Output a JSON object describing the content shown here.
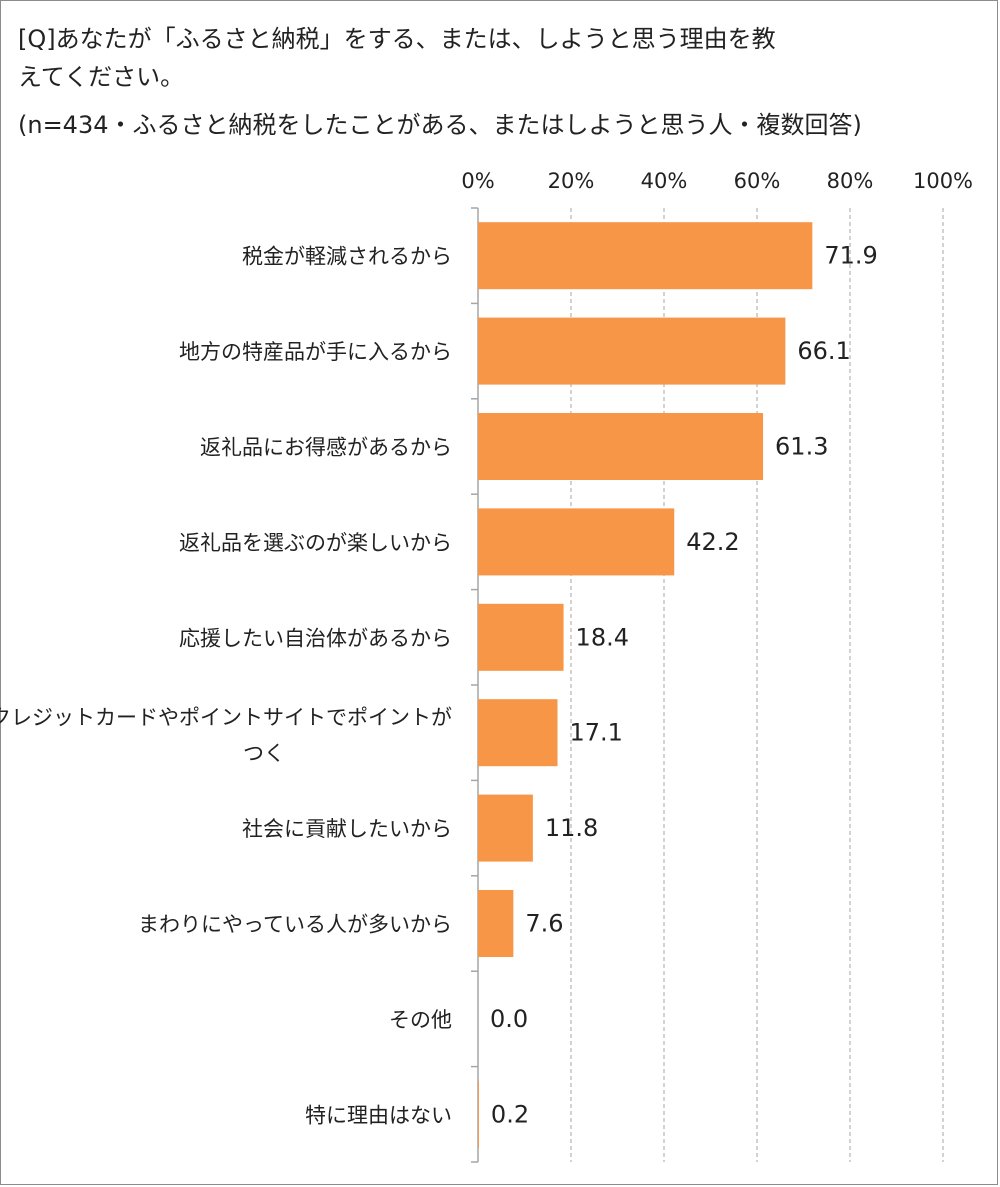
{
  "question": "[Q]あなたが「ふるさと納税」をする、または、しようと思う理由を教えてください。",
  "sample_note": "(n=434・ふるさと納税をしたことがある、またはしようと思う人・複数回答)",
  "colors": {
    "bar": "#F79646",
    "grid": "#A6A6A6",
    "axis": "#A6A6A6"
  },
  "chart_data": {
    "type": "bar",
    "orientation": "horizontal",
    "title": "[Q]あなたが「ふるさと納税」をする、または、しようと思う理由を教えてください。",
    "subtitle": "(n=434・ふるさと納税をしたことがある、またはしようと思う人・複数回答)",
    "categories": [
      "税金が軽減されるから",
      "地方の特産品が手に入るから",
      "返礼品にお得感があるから",
      "返礼品を選ぶのが楽しいから",
      "応援したい自治体があるから",
      "クレジットカードやポイントサイトでポイントがつく",
      "社会に貢献したいから",
      "まわりにやっている人が多いから",
      "その他",
      "特に理由はない"
    ],
    "values": [
      71.9,
      66.1,
      61.3,
      42.2,
      18.4,
      17.1,
      11.8,
      7.6,
      0.0,
      0.2
    ],
    "value_labels": [
      "71.9",
      "66.1",
      "61.3",
      "42.2",
      "18.4",
      "17.1",
      "11.8",
      "7.6",
      "0.0",
      "0.2"
    ],
    "xlim": [
      0,
      100
    ],
    "ticks": [
      0,
      20,
      40,
      60,
      80,
      100
    ],
    "tick_labels": [
      "0%",
      "20%",
      "40%",
      "60%",
      "80%",
      "100%"
    ],
    "tick_position": "top",
    "grid": true,
    "legend": "none"
  }
}
